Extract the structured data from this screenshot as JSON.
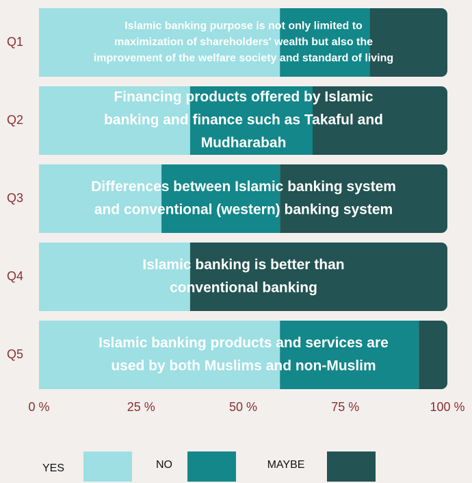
{
  "chart_data": {
    "type": "stacked-bar-horizontal",
    "categories": [
      "Q1",
      "Q2",
      "Q3",
      "Q4",
      "Q5"
    ],
    "bar_texts": [
      [
        "Islamic banking purpose is not only limited to",
        "maximization of shareholders' wealth but also the",
        "improvement of the welfare society and standard of living"
      ],
      [
        "Financing products offered by Islamic",
        "banking and finance such as Takaful and",
        "Mudharabah"
      ],
      [
        "Differences between Islamic banking system",
        "and conventional (western) banking system"
      ],
      [
        "Islamic banking is better than",
        "conventional banking"
      ],
      [
        "Islamic banking products and services are",
        "used by both Muslims and non-Muslim"
      ]
    ],
    "series": [
      {
        "name": "YES",
        "color": "#9ddfe3",
        "values": [
          59,
          37,
          30,
          37,
          59
        ]
      },
      {
        "name": "NO",
        "color": "#13878a",
        "values": [
          22,
          30,
          29,
          0,
          34
        ]
      },
      {
        "name": "MAYBE",
        "color": "#235352",
        "values": [
          19,
          33,
          41,
          63,
          7
        ]
      }
    ],
    "xlim": [
      0,
      100
    ],
    "xticks": [
      {
        "value": 0,
        "label": "0 %"
      },
      {
        "value": 25,
        "label": "25 %"
      },
      {
        "value": 50,
        "label": "50 %"
      },
      {
        "value": 75,
        "label": "75 %"
      },
      {
        "value": 100,
        "label": "100 %"
      }
    ],
    "legend": "bottom"
  }
}
